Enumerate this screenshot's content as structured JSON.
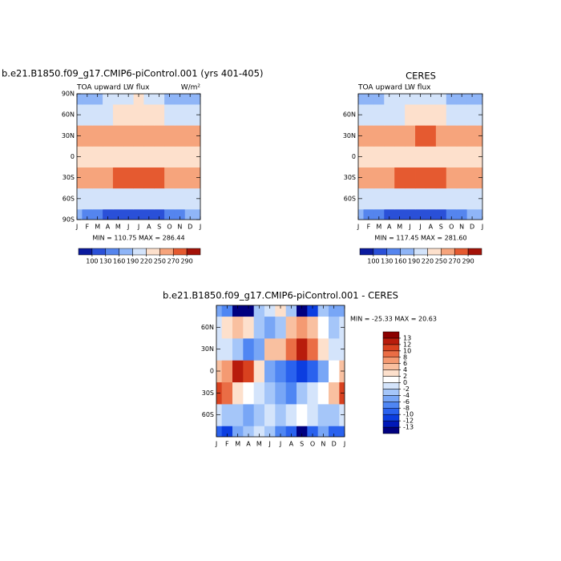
{
  "chart_data": [
    {
      "type": "heatmap",
      "title": "b.e21.B1850.f09_g17.CMIP6-piControl.001 (yrs 401-405)",
      "subtitle": "TOA upward LW flux",
      "units": "W/m²",
      "stats": "MIN = 110.75 MAX = 286.44",
      "categories": [
        "J",
        "F",
        "M",
        "A",
        "M",
        "J",
        "J",
        "A",
        "S",
        "O",
        "N",
        "D",
        "J"
      ],
      "y": [
        -90,
        -60,
        -30,
        0,
        30,
        60,
        90
      ],
      "ylim": [
        -90,
        90
      ],
      "yticks": [
        {
          "value": -90,
          "label": "90S"
        },
        {
          "value": -60,
          "label": "60S"
        },
        {
          "value": -30,
          "label": "30S"
        },
        0,
        {
          "value": 30,
          "label": "30N"
        },
        {
          "value": 60,
          "label": "60N"
        },
        {
          "value": 90,
          "label": "90N"
        }
      ],
      "z": [
        [
          160,
          150,
          130,
          120,
          115,
          112,
          112,
          115,
          120,
          135,
          150,
          160,
          160
        ],
        [
          215,
          215,
          210,
          205,
          200,
          195,
          190,
          190,
          195,
          200,
          210,
          215,
          215
        ],
        [
          255,
          255,
          255,
          260,
          270,
          280,
          285,
          285,
          275,
          265,
          260,
          255,
          255
        ],
        [
          240,
          240,
          235,
          230,
          225,
          220,
          220,
          220,
          225,
          230,
          235,
          240,
          240
        ],
        [
          262,
          255,
          250,
          255,
          260,
          265,
          265,
          265,
          265,
          260,
          255,
          258,
          262
        ],
        [
          195,
          195,
          200,
          210,
          220,
          230,
          235,
          235,
          225,
          210,
          200,
          195,
          195
        ],
        [
          165,
          170,
          175,
          190,
          205,
          215,
          220,
          215,
          200,
          185,
          170,
          165,
          165
        ]
      ],
      "colorbar": {
        "orientation": "horizontal",
        "ticks": [
          100,
          130,
          160,
          190,
          220,
          250,
          270,
          290
        ],
        "colors": [
          "#0a1a9e",
          "#2a50d8",
          "#5585ee",
          "#8fb5f7",
          "#d3e3fa",
          "#fde0cc",
          "#f6a47c",
          "#e55a30",
          "#a41208"
        ]
      }
    },
    {
      "type": "heatmap",
      "title": "CERES",
      "subtitle": "TOA upward LW flux",
      "stats": "MIN = 117.45 MAX = 281.60",
      "categories": [
        "J",
        "F",
        "M",
        "A",
        "M",
        "J",
        "J",
        "A",
        "S",
        "O",
        "N",
        "D",
        "J"
      ],
      "y": [
        -90,
        -60,
        -30,
        0,
        30,
        60,
        90
      ],
      "ylim": [
        -90,
        90
      ],
      "yticks": [
        {
          "value": -60,
          "label": "60S"
        },
        {
          "value": -30,
          "label": "30S"
        },
        0,
        {
          "value": 30,
          "label": "30N"
        },
        {
          "value": 60,
          "label": "60N"
        }
      ],
      "z": [
        [
          165,
          155,
          140,
          128,
          122,
          120,
          120,
          122,
          128,
          140,
          155,
          165,
          165
        ],
        [
          215,
          215,
          212,
          208,
          203,
          198,
          195,
          195,
          198,
          205,
          212,
          215,
          215
        ],
        [
          258,
          258,
          258,
          262,
          270,
          278,
          280,
          280,
          272,
          265,
          260,
          258,
          258
        ],
        [
          238,
          238,
          235,
          232,
          228,
          226,
          226,
          226,
          228,
          232,
          235,
          238,
          238
        ],
        [
          262,
          258,
          255,
          258,
          262,
          268,
          272,
          270,
          268,
          262,
          258,
          260,
          262
        ],
        [
          200,
          198,
          200,
          208,
          218,
          228,
          232,
          230,
          222,
          210,
          200,
          198,
          200
        ],
        [
          175,
          175,
          180,
          192,
          205,
          215,
          218,
          214,
          200,
          188,
          178,
          175,
          175
        ]
      ],
      "colorbar": {
        "orientation": "horizontal",
        "ticks": [
          100,
          130,
          160,
          190,
          220,
          250,
          270,
          290
        ],
        "colors": [
          "#0a1a9e",
          "#2a50d8",
          "#5585ee",
          "#8fb5f7",
          "#d3e3fa",
          "#fde0cc",
          "#f6a47c",
          "#e55a30",
          "#a41208"
        ]
      }
    },
    {
      "type": "heatmap",
      "title": "b.e21.B1850.f09_g17.CMIP6-piControl.001 - CERES",
      "stats": "MIN = -25.33 MAX =  20.63",
      "categories": [
        "J",
        "F",
        "M",
        "A",
        "M",
        "J",
        "J",
        "A",
        "S",
        "O",
        "N",
        "D",
        "J"
      ],
      "y": [
        -90,
        -60,
        -30,
        0,
        30,
        60,
        90
      ],
      "ylim": [
        -90,
        90
      ],
      "yticks": [
        {
          "value": -60,
          "label": "60S"
        },
        {
          "value": -30,
          "label": "30S"
        },
        0,
        {
          "value": 30,
          "label": "30N"
        },
        {
          "value": 60,
          "label": "60N"
        }
      ],
      "z": [
        [
          -10,
          -12,
          -6,
          -4,
          -2,
          -4,
          -8,
          -10,
          -14,
          -10,
          -6,
          -10,
          -10
        ],
        [
          -2,
          -4,
          -4,
          -6,
          -4,
          -2,
          -4,
          -2,
          0,
          -2,
          -4,
          -4,
          -2
        ],
        [
          10,
          8,
          2,
          0,
          -2,
          -4,
          -6,
          -8,
          -4,
          -2,
          0,
          4,
          10
        ],
        [
          4,
          6,
          12,
          10,
          2,
          -6,
          -8,
          -10,
          -12,
          -10,
          -6,
          0,
          4
        ],
        [
          -2,
          -2,
          -4,
          -8,
          -6,
          4,
          4,
          8,
          12,
          8,
          2,
          -2,
          -2
        ],
        [
          -2,
          2,
          4,
          2,
          -4,
          -6,
          -4,
          4,
          6,
          4,
          0,
          -4,
          -2
        ],
        [
          -6,
          -8,
          -15,
          -15,
          -4,
          -2,
          2,
          -4,
          -15,
          -12,
          -4,
          -6,
          -6
        ]
      ],
      "colorbar": {
        "orientation": "vertical",
        "ticks": [
          -13,
          -12,
          -10,
          -8,
          -6,
          -4,
          -2,
          0,
          2,
          4,
          6,
          8,
          10,
          12,
          13
        ],
        "colors": [
          "#00007f",
          "#0018b8",
          "#0c3ee0",
          "#2a62ee",
          "#4f86f3",
          "#78a6f6",
          "#a5c6f9",
          "#d4e4fb",
          "#ffffff",
          "#fde0cc",
          "#f9c0a0",
          "#f49a72",
          "#ea6d45",
          "#d8411f",
          "#b81c0c",
          "#8b0000"
        ]
      }
    }
  ]
}
